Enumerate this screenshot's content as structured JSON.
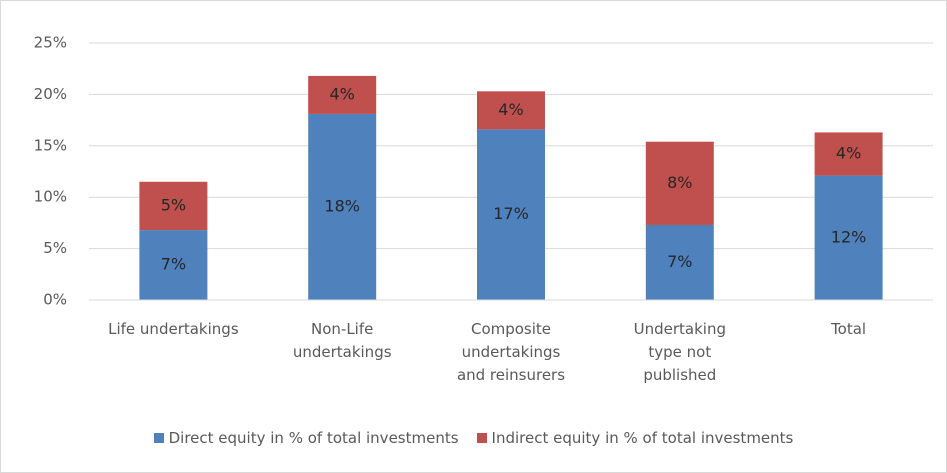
{
  "chart_data": {
    "type": "stacked_bar",
    "categories": [
      "Life undertakings",
      "Non-Life\nundertakings",
      "Composite\nundertakings\nand reinsurers",
      "Undertaking\ntype not\npublished",
      "Total"
    ],
    "series": [
      {
        "name": "Direct equity in % of total investments",
        "color": "#4f81bd",
        "values": [
          6.8,
          18.1,
          16.6,
          7.3,
          12.1
        ],
        "value_labels": [
          "7%",
          "18%",
          "17%",
          "7%",
          "12%"
        ]
      },
      {
        "name": "Indirect equity in % of total investments",
        "color": "#c0504d",
        "values": [
          4.7,
          3.7,
          3.7,
          8.1,
          4.2
        ],
        "value_labels": [
          "5%",
          "4%",
          "4%",
          "8%",
          "4%"
        ]
      }
    ],
    "ylim": [
      0,
      25
    ],
    "yticks": [
      {
        "value": 0,
        "label": "0%"
      },
      {
        "value": 5,
        "label": "5%"
      },
      {
        "value": 10,
        "label": "10%"
      },
      {
        "value": 15,
        "label": "15%"
      },
      {
        "value": 20,
        "label": "20%"
      },
      {
        "value": 25,
        "label": "25%"
      }
    ],
    "grid": true
  }
}
